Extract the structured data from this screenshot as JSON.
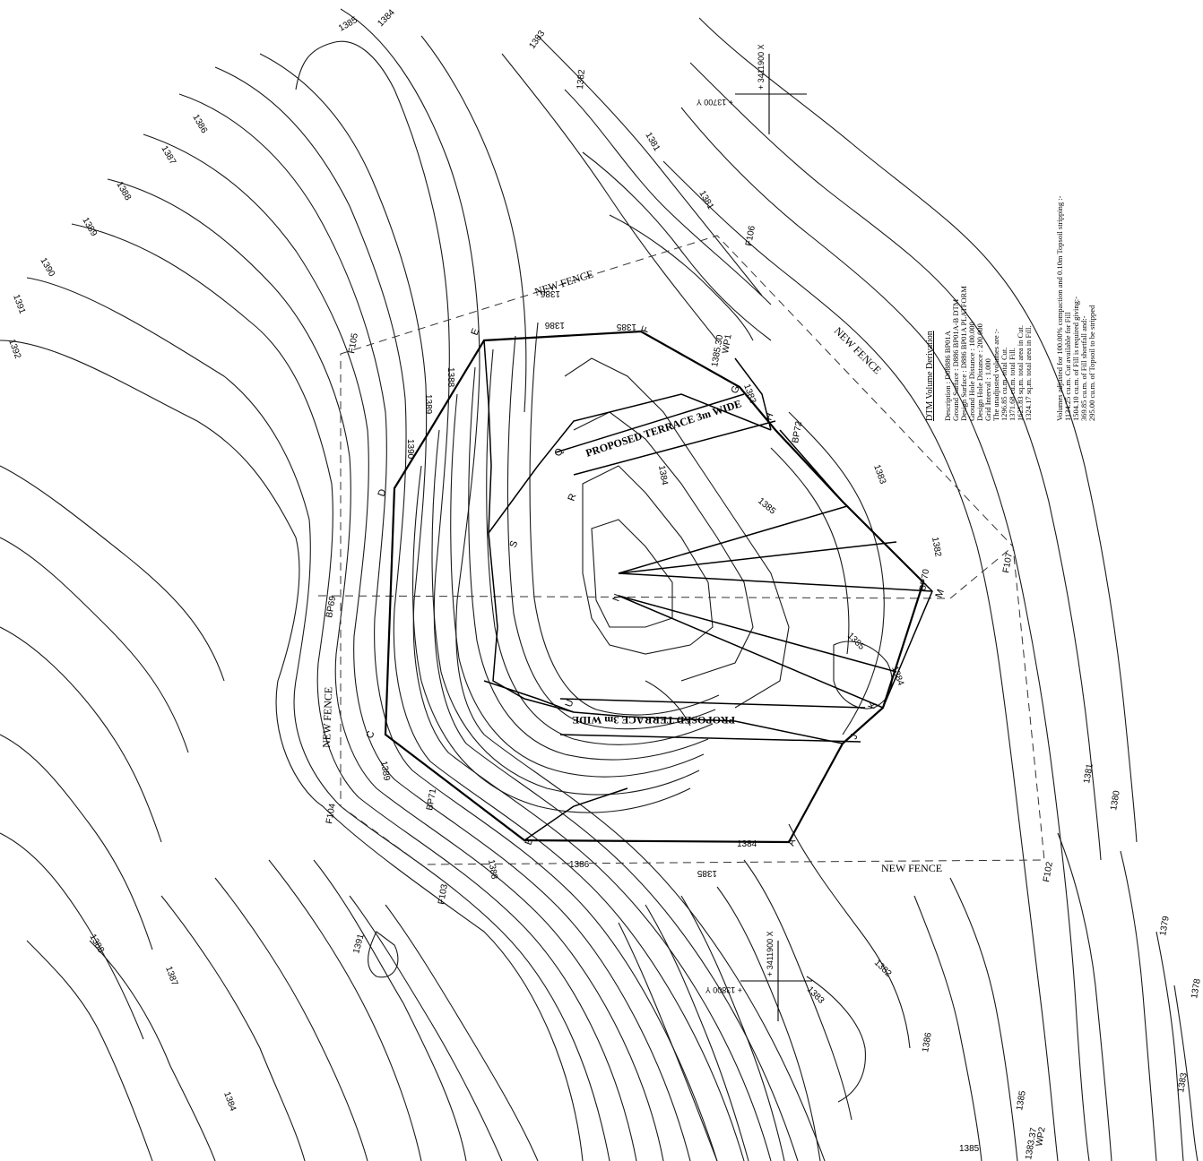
{
  "contour_labels": [
    {
      "id": "c1385a",
      "text": "1385"
    },
    {
      "id": "c1384a",
      "text": "1384"
    },
    {
      "id": "c1383a",
      "text": "1383"
    },
    {
      "id": "c1382a",
      "text": "1382"
    },
    {
      "id": "c1386a",
      "text": "1386"
    },
    {
      "id": "c1387a",
      "text": "1387"
    },
    {
      "id": "c1388a",
      "text": "1388"
    },
    {
      "id": "c1389a",
      "text": "1389"
    },
    {
      "id": "c1390a",
      "text": "1390"
    },
    {
      "id": "c1391a",
      "text": "1391"
    },
    {
      "id": "c1392a",
      "text": "1392"
    },
    {
      "id": "c1381a",
      "text": "1381"
    },
    {
      "id": "c1381b",
      "text": "1381"
    },
    {
      "id": "c1380a",
      "text": "1380"
    },
    {
      "id": "c1379a",
      "text": "1379"
    },
    {
      "id": "c1378a",
      "text": "1378"
    },
    {
      "id": "c1381c",
      "text": "1381"
    },
    {
      "id": "c1386b",
      "text": "1386"
    },
    {
      "id": "c1385b",
      "text": "1385"
    },
    {
      "id": "c1384b",
      "text": "1384"
    },
    {
      "id": "c1383b",
      "text": "1383"
    },
    {
      "id": "c1391b",
      "text": "1391"
    },
    {
      "id": "c1388b",
      "text": "1388"
    },
    {
      "id": "c1387b",
      "text": "1387"
    },
    {
      "id": "c1386c",
      "text": "1386"
    },
    {
      "id": "c1385c",
      "text": "1385"
    },
    {
      "id": "c1384c",
      "text": "1384"
    },
    {
      "id": "c1383c",
      "text": "1383"
    },
    {
      "id": "c1382b",
      "text": "1382"
    },
    {
      "id": "c1385d",
      "text": "1385"
    },
    {
      "id": "c1385e",
      "text": "1385"
    },
    {
      "id": "c1384d",
      "text": "1384"
    },
    {
      "id": "c1386d",
      "text": "1386"
    },
    {
      "id": "c1388c",
      "text": "1388"
    },
    {
      "id": "c1389b",
      "text": "1389"
    },
    {
      "id": "c1390b",
      "text": "1390"
    },
    {
      "id": "c1386e",
      "text": "1386"
    },
    {
      "id": "c1385f",
      "text": "1385"
    },
    {
      "id": "c1385g",
      "text": "1385"
    },
    {
      "id": "c1384e",
      "text": "1384"
    },
    {
      "id": "c1383d",
      "text": "1383"
    },
    {
      "id": "c1383e",
      "text": "1383"
    },
    {
      "id": "c1382c",
      "text": "1382"
    },
    {
      "id": "c1389c",
      "text": "1389"
    },
    {
      "id": "c1388d",
      "text": "1388"
    }
  ],
  "point_labels": [
    {
      "id": "D",
      "text": "D"
    },
    {
      "id": "E",
      "text": "E"
    },
    {
      "id": "C",
      "text": "C"
    },
    {
      "id": "G",
      "text": "G"
    },
    {
      "id": "H",
      "text": "H"
    },
    {
      "id": "Q",
      "text": "Q"
    },
    {
      "id": "R",
      "text": "R"
    },
    {
      "id": "S",
      "text": "S"
    },
    {
      "id": "N",
      "text": "N"
    },
    {
      "id": "U",
      "text": "U"
    },
    {
      "id": "K",
      "text": "K"
    },
    {
      "id": "J",
      "text": "J"
    },
    {
      "id": "A",
      "text": "A"
    },
    {
      "id": "B",
      "text": "B"
    },
    {
      "id": "F",
      "text": "F"
    },
    {
      "id": "M",
      "text": "M"
    }
  ],
  "fence_posts": {
    "F103": "F103",
    "F104": "F104",
    "F105": "F105",
    "F106": "F106",
    "F107": "F107",
    "F102": "F102"
  },
  "survey_points": {
    "BP69": "BP69",
    "BP71": "BP71",
    "BP72": "BP72",
    "BP70": "BP70"
  },
  "fence_labels": {
    "ne": "NEW FENCE",
    "e": "NEW FENCE",
    "w": "NEW FENCE",
    "s": "NEW FENCE"
  },
  "terraces": {
    "upper": "PROPOSED TERRACE 3m WIDE",
    "lower": "PROPOSED TERRACE 3m WIDE"
  },
  "benchmarks": {
    "wp1_elev": "1385.30",
    "wp1_name": "WP1",
    "wp2_elev": "1383.37",
    "wp2_name": "WP2"
  },
  "grid_marks": {
    "top_x": "+ 3411900 X",
    "top_y": "+ 13700 Y",
    "bottom_x": "+ 3411900 X",
    "bottom_y": "+ 13800 Y"
  },
  "notes": {
    "title": "DTM Volume Derivation",
    "lines": [
      "Description           : D08886 BP01A",
      "Ground Surface        : D886 BP01A-B DTM",
      "Design Surface        : D886 BP01A PLATFORM",
      "Ground Hole Distance : 100.000",
      "Design Hole Distance : 200.000",
      "Grid Interval          : 1.000",
      "The unadjusted volumes are :-",
      "1296.85 cu.m. total Cut.",
      "1371.68 cu.m. total Fill.",
      "1625.83 sq.m. total area in Cut.",
      "1324.17 sq.m. total area in Fill."
    ],
    "adjusted_head": "Volumes adjusted for 100.00% compaction and 0.10m Topsoil stripping :-",
    "adjusted_lines": [
      "1134.25 cu.m. Cut available for Fill",
      "1504.10 cu.m. of Fill is required giving:-",
      "369.85 cu.m. of Fill shortfall and:-",
      "295.00 cu.m. of Topsoil to be stripped"
    ]
  },
  "colors": {
    "ink": "#000000",
    "paper": "#ffffff"
  }
}
